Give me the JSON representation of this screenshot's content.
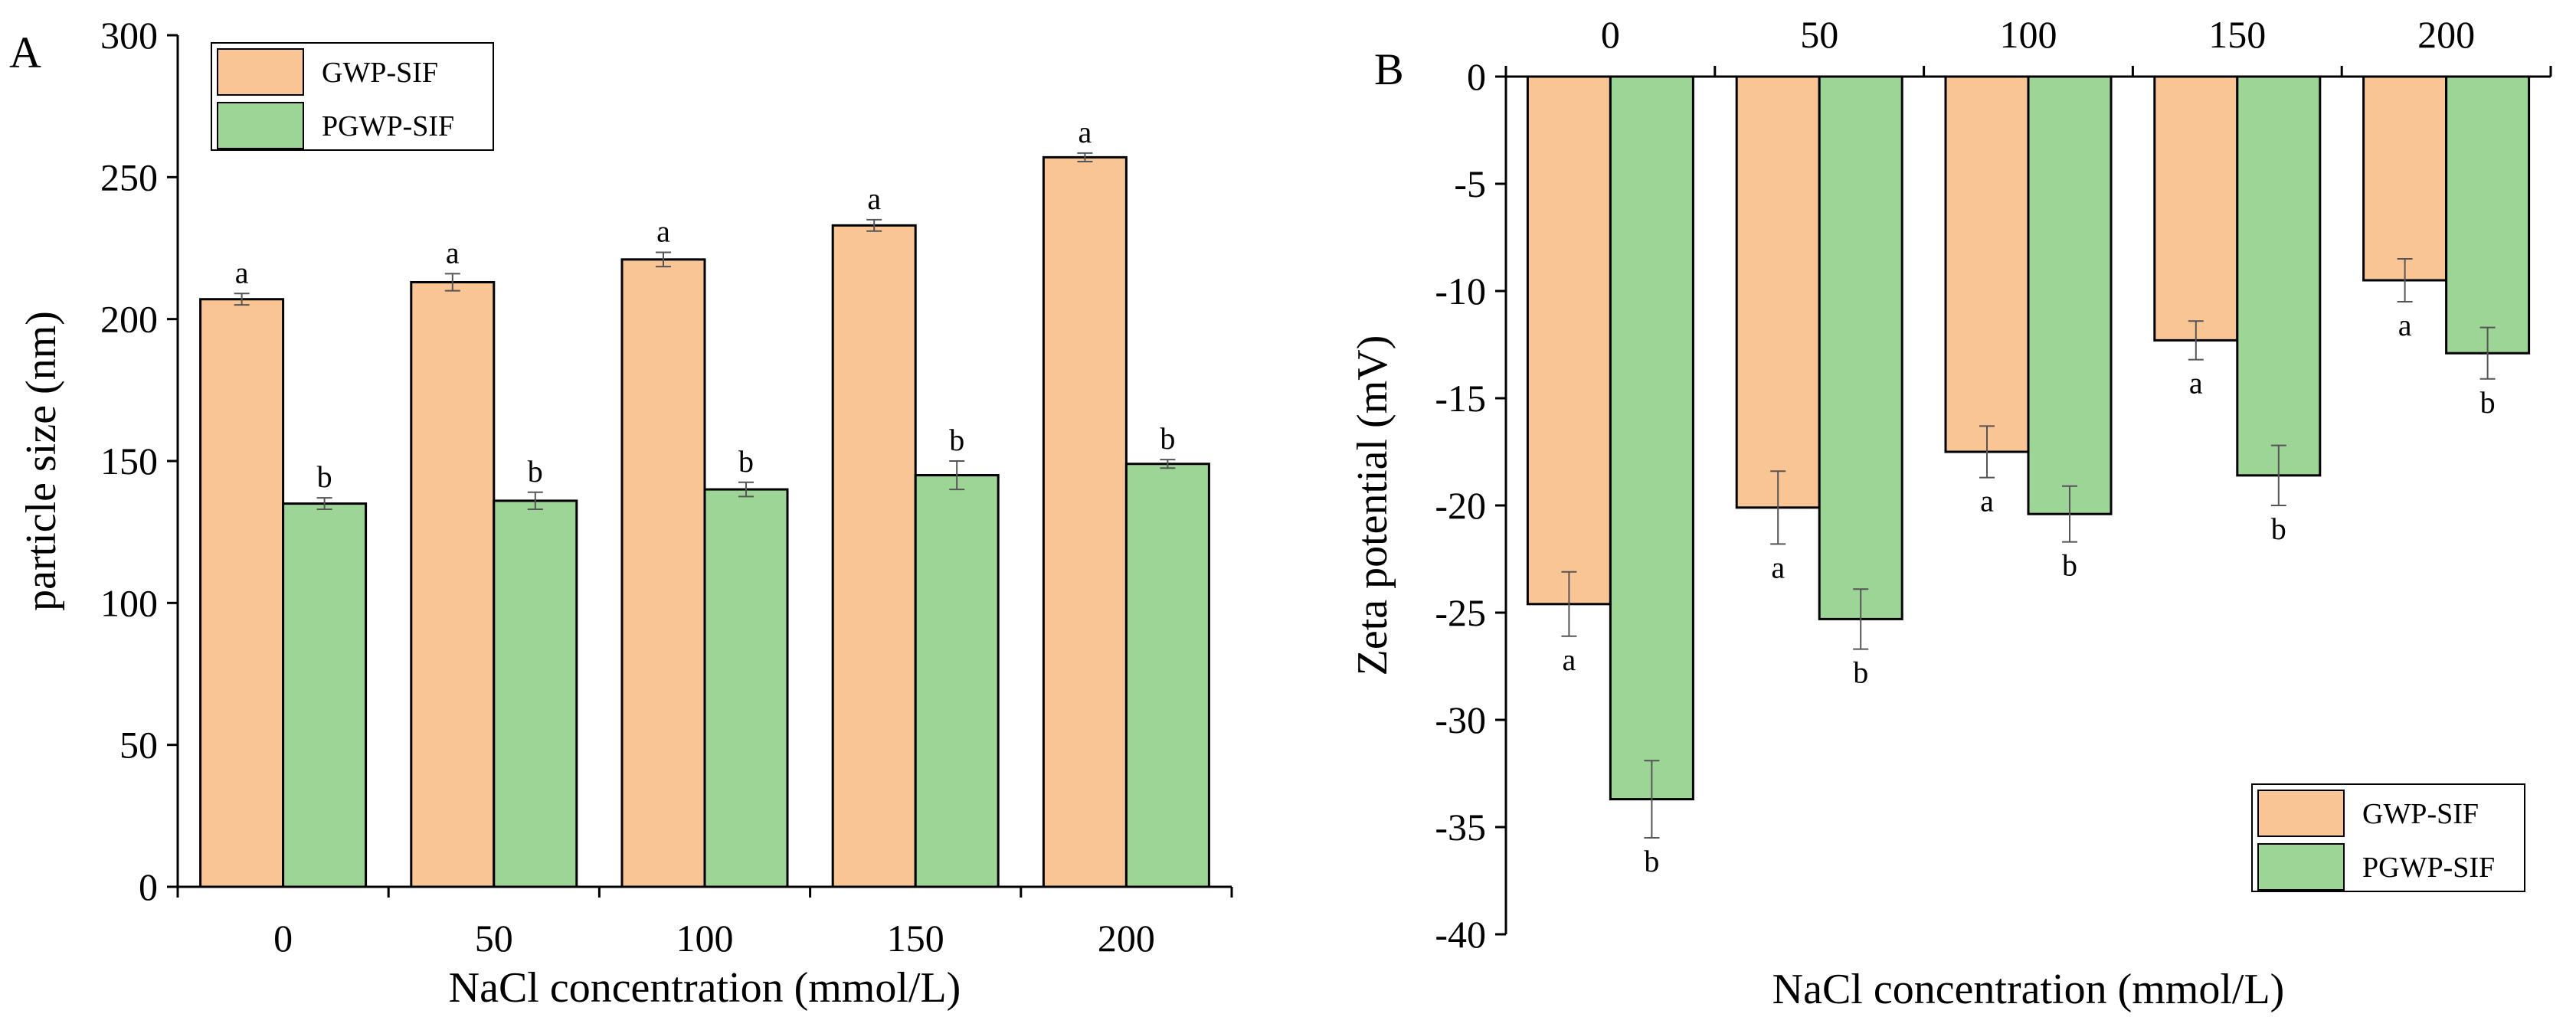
{
  "chart_data": [
    {
      "id": "A",
      "panel_label": "A",
      "type": "bar",
      "categories": [
        "0",
        "50",
        "100",
        "150",
        "200"
      ],
      "series": [
        {
          "name": "GWP-SIF",
          "color": "#FAC595",
          "values": [
            207,
            213,
            221,
            233,
            257
          ],
          "errors": [
            2,
            3,
            2.5,
            2,
            1.5
          ],
          "letters": [
            "a",
            "a",
            "a",
            "a",
            "a"
          ]
        },
        {
          "name": "PGWP-SIF",
          "color": "#9DD596",
          "values": [
            135,
            136,
            140,
            145,
            149
          ],
          "errors": [
            2,
            3,
            2.5,
            5,
            1.5
          ],
          "letters": [
            "b",
            "b",
            "b",
            "b",
            "b"
          ]
        }
      ],
      "title": "",
      "xlabel": "NaCl concentration (mmol/L)",
      "ylabel": "particle size (nm)",
      "ylim": [
        0,
        300
      ],
      "yticks": [
        "0",
        "50",
        "100",
        "150",
        "200",
        "250",
        "300"
      ],
      "legend": "top-left",
      "grid": false
    },
    {
      "id": "B",
      "panel_label": "B",
      "type": "bar",
      "categories": [
        "0",
        "50",
        "100",
        "150",
        "200"
      ],
      "series": [
        {
          "name": "GWP-SIF",
          "color": "#FAC595",
          "values": [
            -24.6,
            -20.1,
            -17.5,
            -12.3,
            -9.5
          ],
          "errors": [
            1.5,
            1.7,
            1.2,
            0.9,
            1.0
          ],
          "letters": [
            "a",
            "a",
            "a",
            "a",
            "a"
          ]
        },
        {
          "name": "PGWP-SIF",
          "color": "#9DD596",
          "values": [
            -33.7,
            -25.3,
            -20.4,
            -18.6,
            -12.9
          ],
          "errors": [
            1.8,
            1.4,
            1.3,
            1.4,
            1.2
          ],
          "letters": [
            "b",
            "b",
            "b",
            "b",
            "b"
          ]
        }
      ],
      "title": "",
      "xlabel": "NaCl concentration (mmol/L)",
      "ylabel": "Zeta potential (mV)",
      "ylim": [
        -40,
        0
      ],
      "yticks": [
        "0",
        "-5",
        "-10",
        "-15",
        "-20",
        "-25",
        "-30",
        "-35",
        "-40"
      ],
      "x_axis_position": "top",
      "legend": "bottom-right",
      "grid": false
    }
  ]
}
